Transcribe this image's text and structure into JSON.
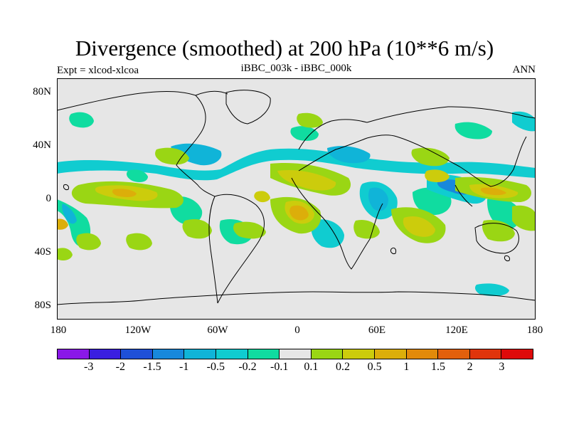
{
  "title": "Divergence (smoothed) at 200 hPa (10**6 m/s)",
  "subtitle_left": "Expt = xlcod-xlcoa",
  "subtitle_center": "iBBC_003k - iBBC_000k",
  "subtitle_right": "ANN",
  "y_ticks": [
    "80N",
    "40N",
    "0",
    "40S",
    "80S"
  ],
  "x_ticks": [
    "180",
    "120W",
    "60W",
    "0",
    "60E",
    "120E",
    "180"
  ],
  "colorbar": {
    "colors": [
      "#8a18e8",
      "#3a1ee0",
      "#1e50d8",
      "#1888dc",
      "#10b4d8",
      "#10ccd0",
      "#10dca0",
      "#e6e6e6",
      "#9ad614",
      "#cccc0c",
      "#dcae0a",
      "#e28a0a",
      "#e2600c",
      "#e0340c",
      "#de0a0a"
    ],
    "labels": [
      "-3",
      "-2",
      "-1.5",
      "-1",
      "-0.5",
      "-0.2",
      "-0.1",
      "0.1",
      "0.2",
      "0.5",
      "1",
      "1.5",
      "2",
      "3"
    ]
  },
  "map_background": "#e6e6e6"
}
